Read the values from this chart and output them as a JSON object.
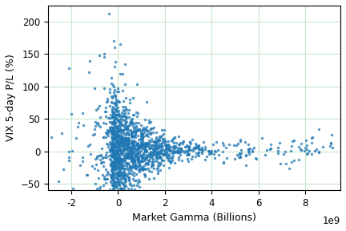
{
  "xlabel": "Market Gamma (Billions)",
  "ylabel": "VIX 5-day P/L (%)",
  "xlim": [
    -3000000000.0,
    9500000000.0
  ],
  "ylim": [
    -60,
    225
  ],
  "dot_color": "#1f77b4",
  "dot_size": 6,
  "alpha": 0.75,
  "grid_color": "#c8e6c9",
  "background_color": "#ffffff",
  "seed": 7,
  "xticks": [
    -2000000000.0,
    0,
    2000000000.0,
    4000000000.0,
    6000000000.0,
    8000000000.0
  ],
  "yticks": [
    -50,
    0,
    50,
    100,
    150,
    200
  ]
}
